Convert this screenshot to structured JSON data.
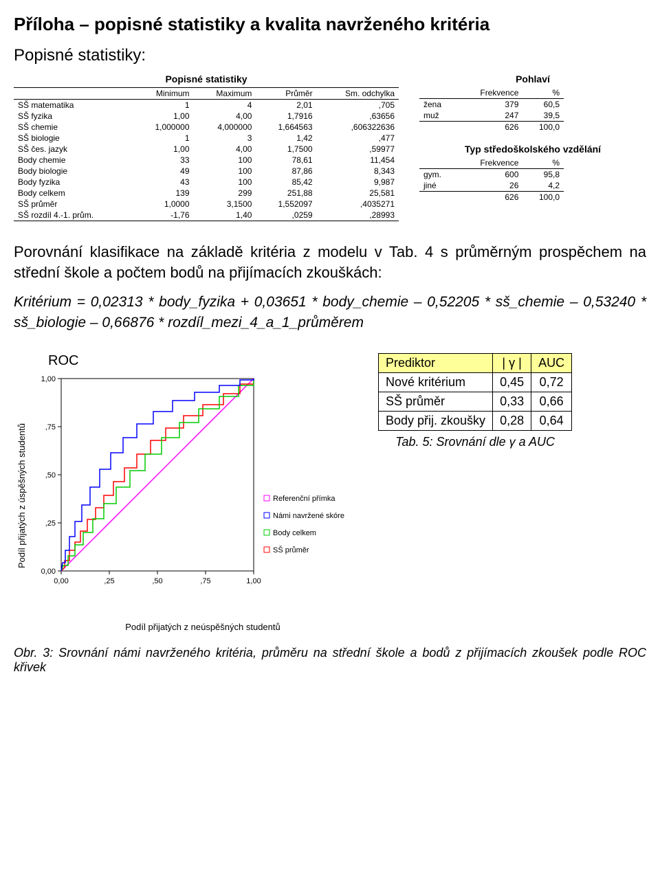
{
  "title": "Příloha – popisné statistiky a kvalita navrženého kritéria",
  "subtitle": "Popisné statistiky:",
  "stats_table": {
    "title": "Popisné statistiky",
    "headers": [
      "",
      "Minimum",
      "Maximum",
      "Průměr",
      "Sm. odchylka"
    ],
    "rows": [
      [
        "SŠ matematika",
        "1",
        "4",
        "2,01",
        ",705"
      ],
      [
        "SŠ fyzika",
        "1,00",
        "4,00",
        "1,7916",
        ",63656"
      ],
      [
        "SŠ chemie",
        "1,000000",
        "4,000000",
        "1,664563",
        ",606322636"
      ],
      [
        "SŠ biologie",
        "1",
        "3",
        "1,42",
        ",477"
      ],
      [
        "SŠ čes. jazyk",
        "1,00",
        "4,00",
        "1,7500",
        ",59977"
      ],
      [
        "Body chemie",
        "33",
        "100",
        "78,61",
        "11,454"
      ],
      [
        "Body biologie",
        "49",
        "100",
        "87,86",
        "8,343"
      ],
      [
        "Body fyzika",
        "43",
        "100",
        "85,42",
        "9,987"
      ],
      [
        "Body celkem",
        "139",
        "299",
        "251,88",
        "25,581"
      ],
      [
        "SŠ průměr",
        "1,0000",
        "3,1500",
        "1,552097",
        ",4035271"
      ],
      [
        "SŠ rozdíl 4.-1. prům.",
        "-1,76",
        "1,40",
        ",0259",
        ",28993"
      ]
    ]
  },
  "gender_table": {
    "title": "Pohlaví",
    "headers": [
      "",
      "Frekvence",
      "%"
    ],
    "rows": [
      [
        "žena",
        "379",
        "60,5"
      ],
      [
        "muž",
        "247",
        "39,5"
      ]
    ],
    "total": [
      "",
      "626",
      "100,0"
    ]
  },
  "edu_table": {
    "title": "Typ středoškolského vzdělání",
    "headers": [
      "",
      "Frekvence",
      "%"
    ],
    "rows": [
      [
        "gym.",
        "600",
        "95,8"
      ],
      [
        "jiné",
        "26",
        "4,2"
      ]
    ],
    "total": [
      "",
      "626",
      "100,0"
    ]
  },
  "paragraph1": "Porovnání klasifikace na základě kritéria z modelu v Tab. 4 s průměrným prospěchem na střední škole a počtem bodů na přijímacích zkouškách:",
  "formula_label": "Kritérium",
  "formula_body": " = 0,02313 * body_fyzika + 0,03651 * body_chemie – 0,52205 * sš_chemie – 0,53240 * sš_biologie – 0,66876 * rozdíl_mezi_4_a_1_průměrem",
  "roc": {
    "title": "ROC",
    "ylabel": "Podíl přijatých z úspěšných studentů",
    "xlabel": "Podíl přijatých z neúspěšných studentů",
    "xticks": [
      "0,00",
      ",25",
      ",50",
      ",75",
      "1,00"
    ],
    "yticks": [
      "0,00",
      ",25",
      ",50",
      ",75",
      "1,00"
    ],
    "legend": [
      {
        "label": "Referenční přímka",
        "color": "#ff00ff"
      },
      {
        "label": "Námi navržené skóre",
        "color": "#0000ff"
      },
      {
        "label": "Body celkem",
        "color": "#00cc00"
      },
      {
        "label": "SŠ průměr",
        "color": "#ff0000"
      }
    ],
    "colors": {
      "ref": "#ff00ff",
      "nove": "#0000ff",
      "body": "#00cc00",
      "ss": "#ff0000",
      "frame": "#000000",
      "bg": "#ffffff"
    }
  },
  "pred_table": {
    "headers": [
      "Prediktor",
      "| γ |",
      "AUC"
    ],
    "rows": [
      [
        "Nové kritérium",
        "0,45",
        "0,72"
      ],
      [
        "SŠ průměr",
        "0,33",
        "0,66"
      ],
      [
        "Body přij. zkoušky",
        "0,28",
        "0,64"
      ]
    ],
    "caption": "Tab. 5: Srovnání dle  γ a AUC"
  },
  "fig_caption": "Obr. 3: Srovnání námi navrženého kritéria, průměru na střední škole a bodů z přijímacích zkoušek podle ROC křivek"
}
